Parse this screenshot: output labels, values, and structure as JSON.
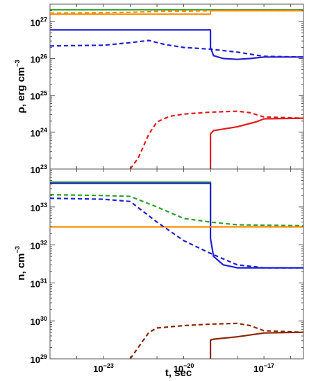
{
  "chart_data": [
    {
      "type": "line",
      "title": "",
      "xlabel": "",
      "ylabel": "ρ, erg cm^-3",
      "ylabel_parts": {
        "main": "ρ, erg cm",
        "exp": "−3"
      },
      "log_x": true,
      "log_y": true,
      "xlim": [
        1e-25,
        3e-16
      ],
      "ylim": [
        1e+23,
        3e+27
      ],
      "ytick_labels": [
        {
          "value": 1e+27,
          "base": "10",
          "exp": "27"
        },
        {
          "value": 1e+26,
          "base": "10",
          "exp": "26"
        },
        {
          "value": 1e+25,
          "base": "10",
          "exp": "25"
        },
        {
          "value": 1e+24,
          "base": "10",
          "exp": "24"
        },
        {
          "value": 1e+23,
          "base": "10",
          "exp": "23"
        }
      ],
      "series": [
        {
          "color": "#2ca02c",
          "style": "solid",
          "points": [
            [
              1e-25,
              2.1e+27
            ],
            [
              3e-16,
              2.1e+27
            ]
          ]
        },
        {
          "color": "#ff8c00",
          "style": "solid",
          "points": [
            [
              1e-25,
              1.6e+27
            ],
            [
              1e-19,
              1.6e+27
            ],
            [
              1e-19,
              2e+27
            ],
            [
              3e-16,
              2e+27
            ]
          ]
        },
        {
          "color": "#ff8c00",
          "style": "dashed",
          "points": [
            [
              1e-25,
              1.7e+27
            ],
            [
              1e-22,
              1.8e+27
            ],
            [
              1e-21,
              1.9e+27
            ],
            [
              1e-19,
              2e+27
            ],
            [
              3e-16,
              2e+27
            ]
          ]
        },
        {
          "color": "#1f1fd0",
          "style": "solid",
          "points": [
            [
              1e-25,
              6e+26
            ],
            [
              1e-19,
              6e+26
            ],
            [
              1e-19,
              2e+26
            ],
            [
              1.3e-19,
              1.2e+26
            ],
            [
              3e-19,
              1e+26
            ],
            [
              1e-18,
              9.5e+25
            ],
            [
              3e-18,
              1e+26
            ],
            [
              1e-17,
              1.1e+26
            ],
            [
              3e-16,
              1.1e+26
            ]
          ]
        },
        {
          "color": "#1f1fd0",
          "style": "dashed",
          "points": [
            [
              1e-25,
              2.2e+26
            ],
            [
              1e-23,
              2.3e+26
            ],
            [
              1e-22,
              2.7e+26
            ],
            [
              5e-22,
              3.1e+26
            ],
            [
              2e-21,
              2.4e+26
            ],
            [
              1e-20,
              2e+26
            ],
            [
              1e-19,
              1.8e+26
            ],
            [
              1e-18,
              1.5e+26
            ],
            [
              1e-17,
              1.15e+26
            ],
            [
              3e-16,
              1.1e+26
            ]
          ]
        },
        {
          "color": "#e31a1c",
          "style": "dashed",
          "points": [
            [
              1e-22,
              1e+23
            ],
            [
              2e-22,
              2e+23
            ],
            [
              5e-22,
              9e+23
            ],
            [
              1e-21,
              1.9e+24
            ],
            [
              3e-21,
              2.7e+24
            ],
            [
              1e-20,
              3.1e+24
            ],
            [
              1e-19,
              3.5e+24
            ],
            [
              1e-18,
              3.7e+24
            ],
            [
              3e-18,
              3.4e+24
            ],
            [
              1e-17,
              2.6e+24
            ],
            [
              3e-16,
              2.4e+24
            ]
          ]
        },
        {
          "color": "#e31a1c",
          "style": "solid",
          "points": [
            [
              1e-19,
              1e+23
            ],
            [
              1e-19,
              9e+23
            ],
            [
              1.3e-19,
              1.1e+24
            ],
            [
              1e-18,
              1.4e+24
            ],
            [
              5e-18,
              1.9e+24
            ],
            [
              1e-17,
              2.3e+24
            ],
            [
              3e-16,
              2.4e+24
            ]
          ]
        }
      ]
    },
    {
      "type": "line",
      "title": "",
      "xlabel": "t, sec",
      "ylabel": "n, cm^-3",
      "ylabel_parts": {
        "main": "n, cm",
        "exp": "−3"
      },
      "log_x": true,
      "log_y": true,
      "xlim": [
        1e-25,
        3e-16
      ],
      "ylim": [
        1e+29,
        1e+34
      ],
      "xtick_labels": [
        {
          "value": 1e-23,
          "base": "10",
          "exp": "−23"
        },
        {
          "value": 1e-20,
          "base": "10",
          "exp": "−20"
        },
        {
          "value": 1e-17,
          "base": "10",
          "exp": "−17"
        }
      ],
      "ytick_labels": [
        {
          "value": 1e+33,
          "base": "10",
          "exp": "33"
        },
        {
          "value": 1e+32,
          "base": "10",
          "exp": "32"
        },
        {
          "value": 1e+31,
          "base": "10",
          "exp": "31"
        },
        {
          "value": 1e+30,
          "base": "10",
          "exp": "30"
        },
        {
          "value": 1e+29,
          "base": "10",
          "exp": "29"
        }
      ],
      "series": [
        {
          "color": "#2ca02c",
          "style": "solid",
          "points": [
            [
              1e-25,
              4.5e+33
            ],
            [
              1e-19,
              4.5e+33
            ],
            [
              1e-19,
              3.1e+32
            ]
          ]
        },
        {
          "color": "#1f1fd0",
          "style": "solid",
          "points": [
            [
              1e-25,
              4.2e+33
            ],
            [
              1e-19,
              4.2e+33
            ],
            [
              1e-19,
              1.5e+32
            ],
            [
              1.3e-19,
              5e+31
            ],
            [
              3e-19,
              3e+31
            ],
            [
              1e-18,
              2.5e+31
            ],
            [
              3e-16,
              2.5e+31
            ]
          ]
        },
        {
          "color": "#2ca02c",
          "style": "dashed",
          "points": [
            [
              1e-25,
              2.1e+33
            ],
            [
              1e-23,
              2e+33
            ],
            [
              1e-22,
              1.9e+33
            ],
            [
              1e-21,
              1e+33
            ],
            [
              1e-20,
              5e+32
            ],
            [
              1e-19,
              4e+32
            ],
            [
              1e-18,
              3.4e+32
            ],
            [
              3e-16,
              3.2e+32
            ]
          ]
        },
        {
          "color": "#ff8c00",
          "style": "solid",
          "points": [
            [
              1e-25,
              3e+32
            ],
            [
              3e-16,
              3e+32
            ]
          ]
        },
        {
          "color": "#1f1fd0",
          "style": "dashed",
          "points": [
            [
              1e-25,
              1.7e+33
            ],
            [
              1e-23,
              1.6e+33
            ],
            [
              1e-22,
              1.4e+33
            ],
            [
              1e-21,
              4e+32
            ],
            [
              1e-20,
              1.3e+32
            ],
            [
              1e-19,
              6e+31
            ],
            [
              1e-18,
              3e+31
            ],
            [
              1e-17,
              2.5e+31
            ],
            [
              3e-16,
              2.5e+31
            ]
          ]
        },
        {
          "color": "#8b2500",
          "style": "dashed",
          "points": [
            [
              1e-22,
              1e+29
            ],
            [
              2e-22,
              2e+29
            ],
            [
              5e-22,
              5e+29
            ],
            [
              1e-21,
              6.5e+29
            ],
            [
              1e-20,
              7.5e+29
            ],
            [
              1e-19,
              8.2e+29
            ],
            [
              1e-18,
              8.6e+29
            ],
            [
              3e-18,
              7.5e+29
            ],
            [
              1e-17,
              5.5e+29
            ],
            [
              3e-16,
              5e+29
            ]
          ]
        },
        {
          "color": "#8b2500",
          "style": "solid",
          "points": [
            [
              1e-19,
              1e+29
            ],
            [
              1e-19,
              3.1e+29
            ],
            [
              1.3e-19,
              3.3e+29
            ],
            [
              1e-18,
              3.8e+29
            ],
            [
              1e-17,
              4.8e+29
            ],
            [
              3e-16,
              5e+29
            ]
          ]
        }
      ]
    }
  ]
}
